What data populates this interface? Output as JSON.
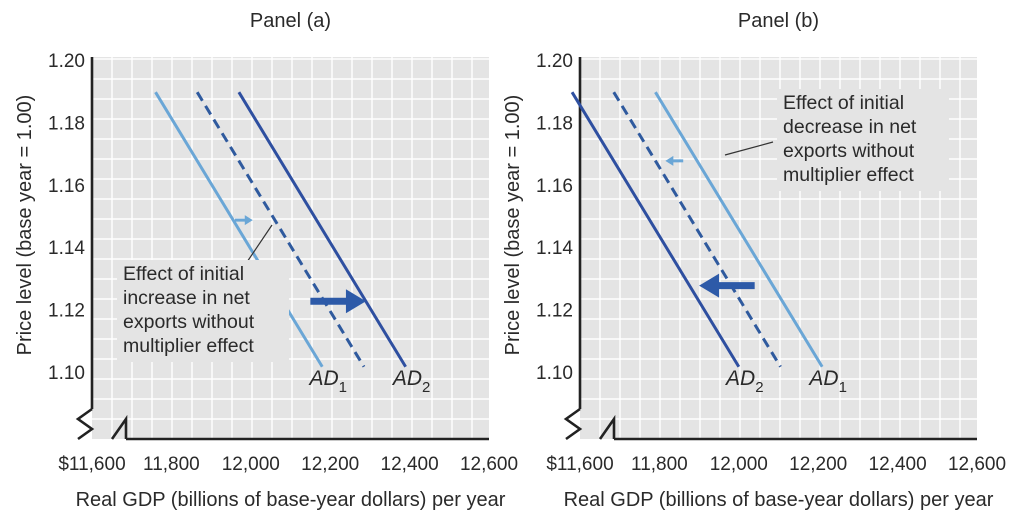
{
  "colors": {
    "plot_bg": "#e4e4e4",
    "grid": "#ffffff",
    "axis": "#222222",
    "ad1_light": "#6aa6d6",
    "ad_dashed": "#2f5a9e",
    "ad_dark": "#2e4fa0",
    "arrow": "#2d5aa8",
    "small_arrow": "#6aa6d6"
  },
  "chart_data": [
    {
      "id": "a",
      "type": "line",
      "title": "Panel (a)",
      "xlabel": "Real GDP (billions of base-year dollars) per year",
      "ylabel": "Price level (base year = 1.00)",
      "xlim": [
        11600,
        12600
      ],
      "ylim": [
        1.1,
        1.2
      ],
      "axis_break": true,
      "grid": true,
      "x_ticks": [
        "$11,600",
        "11,800",
        "12,000",
        "12,200",
        "12,400",
        "12,600"
      ],
      "y_ticks": [
        "1.10",
        "1.12",
        "1.14",
        "1.16",
        "1.18",
        "1.20"
      ],
      "series": [
        {
          "name": "AD1",
          "label_main": "AD",
          "label_sub": "1",
          "style": "light",
          "points": [
            [
              11760,
              1.19
            ],
            [
              12180,
              1.102
            ]
          ]
        },
        {
          "name": "",
          "style": "dashed",
          "points": [
            [
              11865,
              1.19
            ],
            [
              12285,
              1.102
            ]
          ]
        },
        {
          "name": "AD2",
          "label_main": "AD",
          "label_sub": "2",
          "style": "dark",
          "points": [
            [
              11970,
              1.19
            ],
            [
              12390,
              1.102
            ]
          ]
        }
      ],
      "shift_arrow": {
        "direction": "right",
        "from": [
          12150,
          1.123
        ],
        "to": [
          12290,
          1.123
        ]
      },
      "annotation": {
        "lines": [
          "Effect of initial",
          "increase in net",
          "exports without",
          "multiplier effect"
        ],
        "small_arrow": {
          "direction": "right",
          "from": [
            11960,
            1.149
          ],
          "to": [
            12005,
            1.149
          ]
        }
      }
    },
    {
      "id": "b",
      "type": "line",
      "title": "Panel (b)",
      "xlabel": "Real GDP (billions of base-year dollars) per year",
      "ylabel": "Price level (base year = 1.00)",
      "xlim": [
        11600,
        12600
      ],
      "ylim": [
        1.1,
        1.2
      ],
      "axis_break": true,
      "grid": true,
      "x_ticks": [
        "$11,600",
        "11,800",
        "12,000",
        "12,200",
        "12,400",
        "12,600"
      ],
      "y_ticks": [
        "1.10",
        "1.12",
        "1.14",
        "1.16",
        "1.18",
        "1.20"
      ],
      "series": [
        {
          "name": "AD2",
          "label_main": "AD",
          "label_sub": "2",
          "style": "dark",
          "points": [
            [
              11580,
              1.19
            ],
            [
              12000,
              1.102
            ]
          ]
        },
        {
          "name": "",
          "style": "dashed",
          "points": [
            [
              11685,
              1.19
            ],
            [
              12105,
              1.102
            ]
          ]
        },
        {
          "name": "AD1",
          "label_main": "AD",
          "label_sub": "1",
          "style": "light",
          "points": [
            [
              11790,
              1.19
            ],
            [
              12210,
              1.102
            ]
          ]
        }
      ],
      "shift_arrow": {
        "direction": "left",
        "from": [
          12040,
          1.128
        ],
        "to": [
          11900,
          1.128
        ]
      },
      "annotation": {
        "lines": [
          "Effect of initial",
          "decrease in net",
          "exports without",
          "multiplier effect"
        ],
        "small_arrow": {
          "direction": "left",
          "from": [
            11860,
            1.168
          ],
          "to": [
            11815,
            1.168
          ]
        }
      }
    }
  ]
}
